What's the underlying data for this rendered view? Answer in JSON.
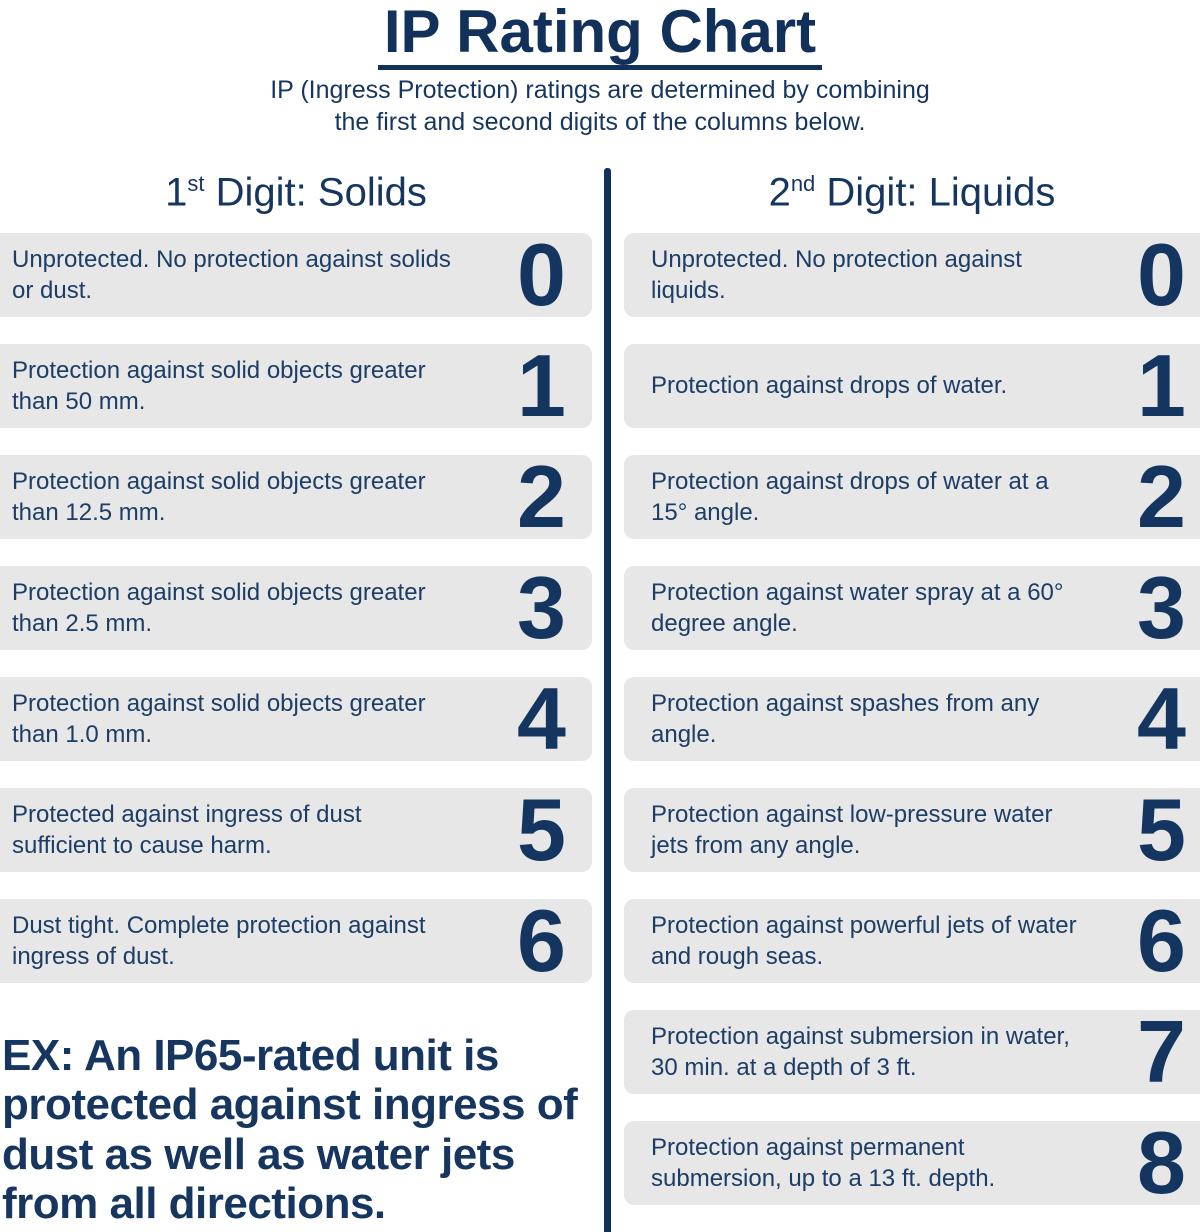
{
  "colors": {
    "navy": "#12315a",
    "text_navy": "#1c3d66",
    "box_gray": "#e7e7e7",
    "background": "#ffffff"
  },
  "header": {
    "title": "IP Rating Chart",
    "subtitle_line1": "IP (Ingress Protection) ratings are determined by combining",
    "subtitle_line2": "the first and second digits of the columns below."
  },
  "solids": {
    "heading": {
      "number": "1",
      "ordinal": "st",
      "rest": " Digit: Solids"
    },
    "rows": [
      {
        "digit": "0",
        "description": "Unprotected. No protection against solids or dust."
      },
      {
        "digit": "1",
        "description": "Protection against solid objects greater than 50 mm."
      },
      {
        "digit": "2",
        "description": "Protection against solid objects greater than 12.5 mm."
      },
      {
        "digit": "3",
        "description": "Protection against solid objects greater than 2.5 mm."
      },
      {
        "digit": "4",
        "description": "Protection against solid objects greater than 1.0 mm."
      },
      {
        "digit": "5",
        "description": "Protected against ingress of dust sufficient to cause harm."
      },
      {
        "digit": "6",
        "description": "Dust tight. Complete protection against ingress of dust."
      }
    ]
  },
  "liquids": {
    "heading": {
      "number": "2",
      "ordinal": "nd",
      "rest": " Digit: Liquids"
    },
    "rows": [
      {
        "digit": "0",
        "description": "Unprotected. No protection against liquids."
      },
      {
        "digit": "1",
        "description": "Protection against drops of water."
      },
      {
        "digit": "2",
        "description": "Protection against drops of water at a 15° angle."
      },
      {
        "digit": "3",
        "description": "Protection against water spray at a 60° degree angle."
      },
      {
        "digit": "4",
        "description": "Protection against spashes from any angle."
      },
      {
        "digit": "5",
        "description": "Protection against low-pressure water jets from any angle."
      },
      {
        "digit": "6",
        "description": "Protection against powerful jets of water and rough seas."
      },
      {
        "digit": "7",
        "description": "Protection against submersion in water, 30 min. at a depth of 3 ft."
      },
      {
        "digit": "8",
        "description": "Protection against permanent submersion, up to a 13 ft. depth."
      }
    ]
  },
  "example": {
    "text": "EX: An IP65-rated unit is protected against ingress of dust as well as water jets from all directions."
  }
}
